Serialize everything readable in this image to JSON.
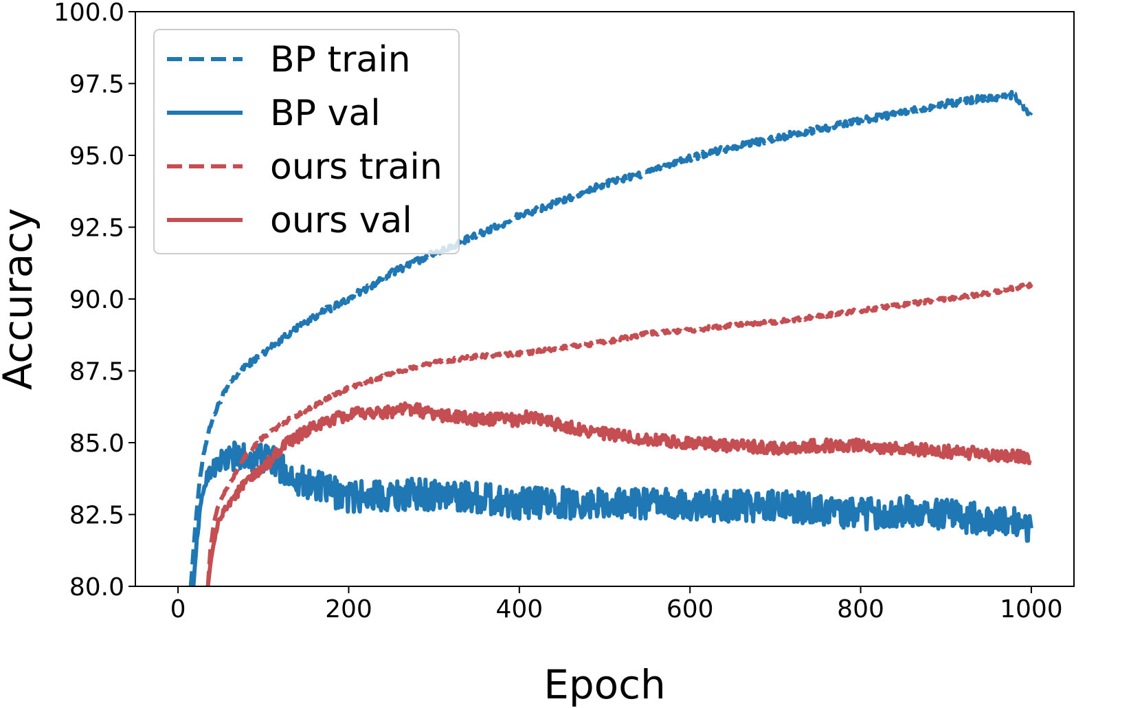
{
  "chart_data": {
    "type": "line",
    "title": "",
    "xlabel": "Epoch",
    "ylabel": "Accuracy",
    "xlim": [
      -50,
      1050
    ],
    "ylim": [
      80.0,
      100.0
    ],
    "xticks": [
      0,
      200,
      400,
      600,
      800,
      1000
    ],
    "xtick_labels": [
      "0",
      "200",
      "400",
      "600",
      "800",
      "1000"
    ],
    "yticks": [
      80.0,
      82.5,
      85.0,
      87.5,
      90.0,
      92.5,
      95.0,
      97.5,
      100.0
    ],
    "ytick_labels": [
      "80.0",
      "82.5",
      "85.0",
      "87.5",
      "90.0",
      "92.5",
      "95.0",
      "97.5",
      "100.0"
    ],
    "grid": false,
    "legend_position": "top-left",
    "series": [
      {
        "name": "BP train",
        "color": "#1f77b4",
        "style": "dashed",
        "noise": 0.12,
        "x": [
          15,
          20,
          25,
          30,
          35,
          40,
          50,
          60,
          75,
          100,
          130,
          160,
          200,
          250,
          300,
          350,
          400,
          450,
          500,
          550,
          600,
          650,
          700,
          750,
          800,
          850,
          900,
          950,
          980,
          1000
        ],
        "y": [
          80.0,
          82.0,
          83.6,
          84.6,
          85.3,
          85.8,
          86.5,
          87.0,
          87.6,
          88.1,
          88.8,
          89.4,
          90.0,
          90.9,
          91.6,
          92.2,
          92.9,
          93.4,
          94.0,
          94.4,
          94.9,
          95.3,
          95.6,
          95.9,
          96.2,
          96.5,
          96.8,
          97.0,
          97.1,
          96.4
        ]
      },
      {
        "name": "BP val",
        "color": "#1f77b4",
        "style": "solid",
        "noise": 0.55,
        "x": [
          18,
          22,
          26,
          30,
          35,
          40,
          50,
          60,
          75,
          90,
          110,
          130,
          150,
          180,
          200,
          250,
          300,
          350,
          400,
          450,
          500,
          550,
          600,
          650,
          700,
          750,
          800,
          850,
          900,
          950,
          1000
        ],
        "y": [
          80.0,
          81.6,
          82.7,
          83.4,
          83.9,
          84.1,
          84.3,
          84.5,
          84.5,
          84.5,
          84.4,
          83.9,
          83.6,
          83.3,
          83.1,
          83.2,
          83.2,
          83.1,
          82.9,
          82.9,
          82.9,
          82.9,
          82.8,
          82.8,
          82.8,
          82.7,
          82.5,
          82.6,
          82.5,
          82.3,
          82.1
        ]
      },
      {
        "name": "ours train",
        "color": "#c44e52",
        "style": "dashed",
        "noise": 0.07,
        "x": [
          35,
          38,
          42,
          47,
          55,
          65,
          80,
          100,
          130,
          160,
          200,
          250,
          300,
          350,
          400,
          450,
          500,
          550,
          600,
          650,
          700,
          750,
          800,
          850,
          900,
          950,
          1000
        ],
        "y": [
          80.0,
          81.3,
          82.2,
          82.8,
          83.3,
          83.8,
          84.6,
          85.2,
          85.8,
          86.3,
          86.9,
          87.4,
          87.8,
          88.0,
          88.1,
          88.3,
          88.5,
          88.8,
          88.9,
          89.1,
          89.2,
          89.4,
          89.6,
          89.8,
          90.0,
          90.2,
          90.5
        ]
      },
      {
        "name": "ours val",
        "color": "#c44e52",
        "style": "solid",
        "noise": 0.22,
        "x": [
          35,
          38,
          42,
          47,
          55,
          65,
          80,
          100,
          120,
          150,
          180,
          210,
          250,
          270,
          300,
          350,
          400,
          410,
          450,
          500,
          550,
          600,
          650,
          700,
          750,
          800,
          850,
          900,
          950,
          1000
        ],
        "y": [
          80.0,
          80.8,
          81.5,
          82.2,
          82.7,
          83.1,
          83.6,
          84.1,
          84.8,
          85.4,
          85.8,
          86.0,
          86.1,
          86.2,
          86.0,
          85.8,
          85.8,
          85.9,
          85.6,
          85.3,
          85.1,
          85.0,
          84.9,
          84.8,
          84.9,
          84.9,
          84.8,
          84.7,
          84.6,
          84.5
        ]
      }
    ]
  }
}
